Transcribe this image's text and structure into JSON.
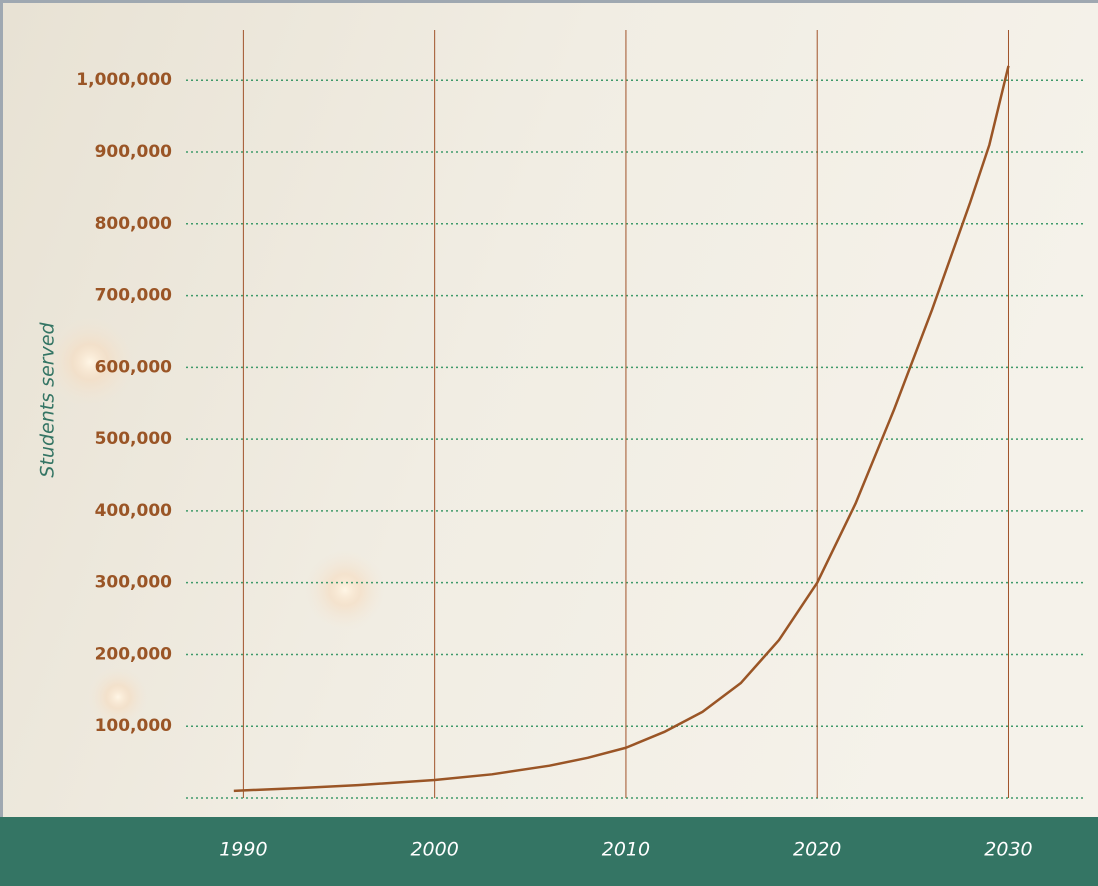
{
  "chart_data": {
    "type": "line",
    "y_label": "Students served",
    "x": [
      1989.5,
      1993,
      1996,
      2000,
      2003,
      2006,
      2008,
      2010,
      2012,
      2014,
      2016,
      2018,
      2020,
      2022,
      2024,
      2026,
      2028,
      2029,
      2030
    ],
    "series": [
      {
        "name": "Students served",
        "color": "#9a5526",
        "values": [
          10000,
          14000,
          18000,
          25000,
          33000,
          45000,
          56000,
          70000,
          92000,
          120000,
          160000,
          220000,
          300000,
          410000,
          540000,
          680000,
          830000,
          910000,
          1020000
        ]
      }
    ],
    "xlim": [
      1987,
      2034
    ],
    "xticks": [
      1990,
      2000,
      2010,
      2020,
      2030
    ],
    "ylim": [
      0,
      1070000
    ],
    "yticks": [
      {
        "value": 100000,
        "label": "100,000"
      },
      {
        "value": 200000,
        "label": "200,000"
      },
      {
        "value": 300000,
        "label": "300,000"
      },
      {
        "value": 400000,
        "label": "400,000"
      },
      {
        "value": 500000,
        "label": "500,000"
      },
      {
        "value": 600000,
        "label": "600,000"
      },
      {
        "value": 700000,
        "label": "700,000"
      },
      {
        "value": 800000,
        "label": "800,000"
      },
      {
        "value": 900000,
        "label": "900,000"
      },
      {
        "value": 1000000,
        "label": "1,000,000"
      }
    ],
    "grid": true
  }
}
